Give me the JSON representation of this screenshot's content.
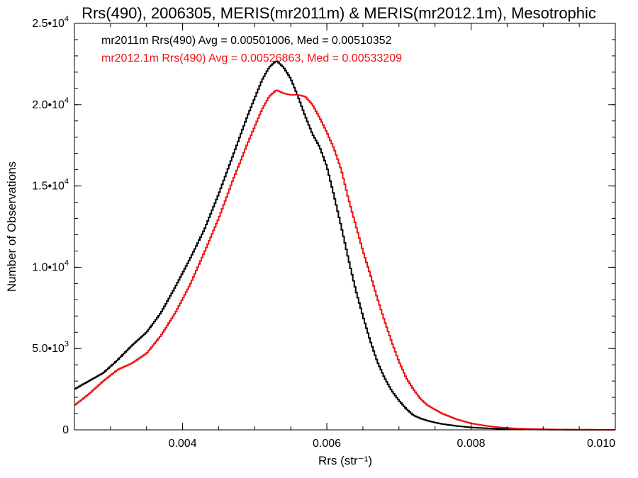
{
  "chart_data": {
    "type": "line",
    "step": true,
    "title": "Rrs(490), 2006305, MERIS(mr2011m) & MERIS(mr2012.1m), Mesotrophic",
    "xlabel": "Rrs (str⁻¹)",
    "ylabel": "Number of Observations",
    "xlim": [
      0.0025,
      0.01
    ],
    "ylim": [
      0,
      25000
    ],
    "xticks": [
      {
        "value": 0.004,
        "label": "0.004"
      },
      {
        "value": 0.006,
        "label": "0.006"
      },
      {
        "value": 0.008,
        "label": "0.008"
      },
      {
        "value": 0.01,
        "label": "0.010"
      }
    ],
    "yticks": [
      {
        "value": 0,
        "label": "0"
      },
      {
        "value": 5000,
        "label": "5.0•10",
        "exp": "3"
      },
      {
        "value": 10000,
        "label": "1.0•10",
        "exp": "4"
      },
      {
        "value": 15000,
        "label": "1.5•10",
        "exp": "4"
      },
      {
        "value": 20000,
        "label": "2.0•10",
        "exp": "4"
      },
      {
        "value": 25000,
        "label": "2.5•10",
        "exp": "4"
      }
    ],
    "x_minor_step": 0.0005,
    "y_minor_step": 1000,
    "grid": false,
    "legend": "top-left",
    "series": [
      {
        "name": "mr2011m",
        "color": "#000000",
        "annotation": "mr2011m Rrs(490) Avg = 0.00501006, Med = 0.00510352",
        "x": [
          0.0025,
          0.0027,
          0.0029,
          0.0031,
          0.0033,
          0.0035,
          0.0037,
          0.0039,
          0.0041,
          0.0043,
          0.0045,
          0.0047,
          0.0049,
          0.0051,
          0.0052,
          0.0053,
          0.0054,
          0.0055,
          0.0056,
          0.0057,
          0.0058,
          0.0059,
          0.006,
          0.0061,
          0.0062,
          0.0063,
          0.0064,
          0.0065,
          0.0066,
          0.0067,
          0.0068,
          0.0069,
          0.007,
          0.0071,
          0.0072,
          0.0073,
          0.0074,
          0.0075,
          0.0076,
          0.0078,
          0.008,
          0.0082,
          0.0084,
          0.0086,
          0.0088,
          0.009,
          0.0092,
          0.0094,
          0.0096,
          0.0098,
          0.01
        ],
        "y": [
          2500,
          3000,
          3500,
          4300,
          5200,
          6000,
          7200,
          8800,
          10500,
          12300,
          14500,
          16900,
          19300,
          21500,
          22300,
          22700,
          22300,
          21600,
          20500,
          19300,
          18200,
          17400,
          16200,
          14400,
          12500,
          10500,
          8600,
          7000,
          5500,
          4200,
          3200,
          2400,
          1800,
          1300,
          900,
          700,
          560,
          450,
          360,
          240,
          150,
          100,
          60,
          40,
          25,
          15,
          10,
          6,
          4,
          2,
          0
        ]
      },
      {
        "name": "mr2012.1m",
        "color": "#ee1111",
        "annotation": "mr2012.1m Rrs(490) Avg = 0.00526863, Med = 0.00533209",
        "x": [
          0.0025,
          0.0027,
          0.0029,
          0.0031,
          0.0033,
          0.0035,
          0.0037,
          0.0039,
          0.0041,
          0.0043,
          0.0045,
          0.0047,
          0.0049,
          0.0051,
          0.0052,
          0.0053,
          0.0054,
          0.0055,
          0.0056,
          0.0057,
          0.0058,
          0.0059,
          0.006,
          0.0061,
          0.0062,
          0.0063,
          0.0064,
          0.0065,
          0.0066,
          0.0067,
          0.0068,
          0.0069,
          0.007,
          0.0071,
          0.0072,
          0.0073,
          0.0074,
          0.0075,
          0.0076,
          0.0078,
          0.008,
          0.0082,
          0.0084,
          0.0086,
          0.0088,
          0.009,
          0.0092,
          0.0094,
          0.0096,
          0.0098,
          0.01
        ],
        "y": [
          1500,
          2200,
          3000,
          3700,
          4100,
          4700,
          5800,
          7200,
          8900,
          10900,
          13000,
          15400,
          17600,
          19700,
          20500,
          20900,
          20700,
          20600,
          20600,
          20500,
          20000,
          19200,
          18300,
          17300,
          16000,
          14200,
          12600,
          11000,
          9600,
          8100,
          6700,
          5400,
          4200,
          3200,
          2500,
          1900,
          1500,
          1250,
          1000,
          650,
          400,
          250,
          150,
          90,
          60,
          40,
          25,
          15,
          10,
          5,
          0
        ]
      }
    ]
  }
}
